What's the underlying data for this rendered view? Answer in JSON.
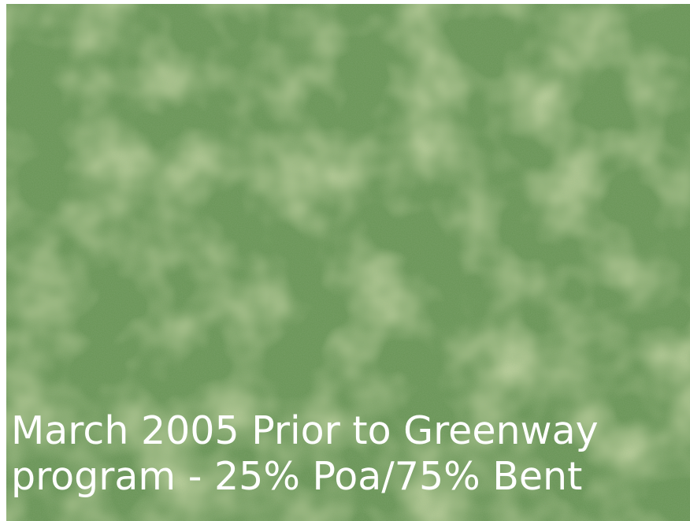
{
  "caption": {
    "line1": "March 2005 Prior to Greenway",
    "line2": "program - 25% Poa/75% Bent"
  },
  "colors": {
    "turf_base": "#6f9a5b",
    "turf_dark": "#5a8647",
    "poa_patch": "#9bb766",
    "caption_text": "#ffffff"
  }
}
